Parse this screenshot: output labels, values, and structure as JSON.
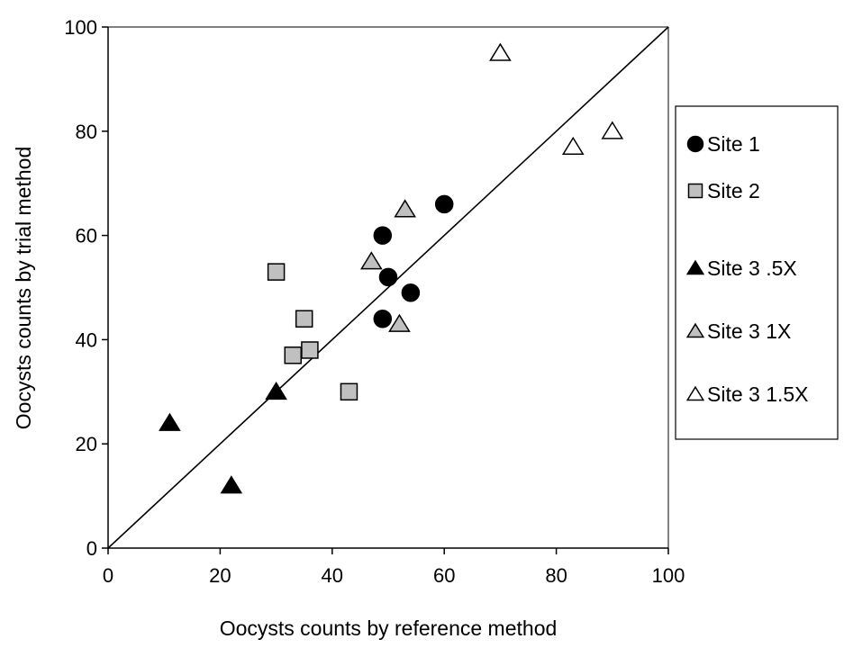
{
  "chart_data": {
    "type": "scatter",
    "xlabel": "Oocysts counts by reference method",
    "ylabel": "Oocysts counts by trial method",
    "xlim": [
      0,
      100
    ],
    "ylim": [
      0,
      100
    ],
    "x_ticks": [
      "0",
      "20",
      "40",
      "60",
      "80",
      "100"
    ],
    "y_ticks": [
      "0",
      "20",
      "40",
      "60",
      "80",
      "100"
    ],
    "grid": false,
    "legend_position": "right",
    "reference_line": {
      "type": "identity",
      "from": [
        0,
        0
      ],
      "to": [
        100,
        100
      ]
    },
    "series": [
      {
        "name": "Site 1",
        "marker": "circle",
        "fill": "#000000",
        "points": [
          [
            49,
            60
          ],
          [
            50,
            52
          ],
          [
            54,
            49
          ],
          [
            49,
            44
          ],
          [
            60,
            66
          ]
        ]
      },
      {
        "name": "Site 2",
        "marker": "square",
        "fill": "#c0c0c0",
        "points": [
          [
            30,
            53
          ],
          [
            35,
            44
          ],
          [
            33,
            37
          ],
          [
            36,
            38
          ],
          [
            43,
            30
          ]
        ]
      },
      {
        "name": "Site 3 .5X",
        "marker": "triangle",
        "fill": "#000000",
        "points": [
          [
            11,
            24
          ],
          [
            22,
            12
          ],
          [
            30,
            30
          ]
        ]
      },
      {
        "name": "Site 3 1X",
        "marker": "triangle",
        "fill": "#c0c0c0",
        "points": [
          [
            47,
            55
          ],
          [
            53,
            65
          ],
          [
            52,
            43
          ]
        ]
      },
      {
        "name": "Site 3 1.5X",
        "marker": "triangle",
        "fill": "#ffffff",
        "points": [
          [
            70,
            95
          ],
          [
            83,
            77
          ],
          [
            90,
            80
          ]
        ]
      }
    ]
  }
}
